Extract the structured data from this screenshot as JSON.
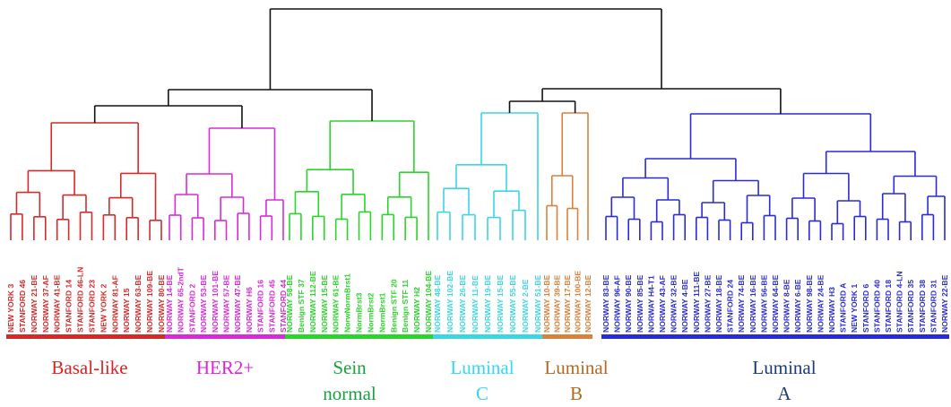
{
  "root_color": "#111111",
  "groups": [
    {
      "key": "basal",
      "color": "#d42a2a",
      "caption_lines": [
        "Basal-like"
      ],
      "leaves": [
        "NEW YORK 3",
        "STANFORD 46",
        "NORWAY 21-BE",
        "NORWAY 37-AF",
        "NORWAY 41-BE",
        "STANFORD 14",
        "STANFORD 46-LN",
        "STANFORD 23",
        "NEW YORK 2",
        "NORWAY 81-AF",
        "NORWAY 15",
        "NORWAY 63-BE",
        "NORWAY 109-BE",
        "NORWAY 80-BE"
      ]
    },
    {
      "key": "her2",
      "color": "#d82ad8",
      "caption_lines": [
        "HER2+"
      ],
      "leaves": [
        "NORWAY 14-BE",
        "NORWAY 65-2ndT",
        "STANFORD 2",
        "NORWAY 53-BE",
        "NORWAY 101-BE",
        "NORWAY 57-BE",
        "NORWAY 47-BE",
        "NORWAY H6",
        "STANFORD 16",
        "STANFORD 45",
        "STANFORD 44"
      ]
    },
    {
      "key": "normal",
      "color": "#2ad42a",
      "caption_lines": [
        "Sein",
        "normal"
      ],
      "leaves": [
        "NORWAY 58-BE",
        "Benign STF 37",
        "NORWAY 112-BE",
        "NORWAY 15-BE",
        "NORWAY 61-BE",
        "NorwNormBrst1",
        "NormBrst3",
        "NormBrst2",
        "NormBrst1",
        "Benign STF 20",
        "Benign STF 11",
        "NORWAY H2",
        "NORWAY 104-BE"
      ]
    },
    {
      "key": "lumc",
      "color": "#3ad6e6",
      "caption_lines": [
        "Luminal",
        "C"
      ],
      "leaves": [
        "NORWAY 48-BE",
        "NORWAY 102-BE",
        "NORWAY 26-BE",
        "NORWAY 11-BE",
        "NORWAY 19-BE",
        "NORWAY 15-BE",
        "NORWAY 55-BE",
        "NORWAY 2-BE",
        "NORWAY 51-BE"
      ]
    },
    {
      "key": "lumb",
      "color": "#d9803a",
      "caption_lines": [
        "Luminal",
        "B"
      ],
      "leaves": [
        "NORWAY 10-BE",
        "NORWAY 39-BE",
        "NORWAY 17-BE",
        "NORWAY 100-BE",
        "NORWAY 12-BE"
      ]
    },
    {
      "key": "luma",
      "color": "#2a2ad6",
      "caption_lines": [
        "Luminal",
        "A"
      ],
      "leaves": [
        "NORWAY 83-BE",
        "NORWAY 96-AF",
        "NORWAY 90-BE",
        "NORWAY 85-BE",
        "NORWAY H4-T1",
        "NORWAY 43-AF",
        "NORWAY 32-BE",
        "NORWAY 4-BE",
        "NORWAY 111-BE",
        "NORWAY 27-BE",
        "NORWAY 18-BE",
        "STANFORD 24",
        "NORWAY 74-BE",
        "NORWAY 16-BE",
        "NORWAY 56-BE",
        "NORWAY 64-BE",
        "NORWAY 8-BE",
        "NORWAY 6-BE",
        "NORWAY 98-BE",
        "NORWAY 24-BE",
        "NORWAY H3",
        "STANFORD A",
        "NEW YORK 1",
        "STANFORD 6",
        "STANFORD 40",
        "STANFORD 18",
        "STANFORD 4-LN",
        "STANFORD 35",
        "STANFORD 38",
        "STANFORD 31",
        "NORWAY 22-BE"
      ]
    }
  ],
  "caption_colors": {
    "basal": "#e02020",
    "her2": "#e020e0",
    "normal": "#1aa040",
    "lumc": "#30d8f0",
    "lumb": "#b06a20",
    "luma": "#1a3a7a"
  }
}
